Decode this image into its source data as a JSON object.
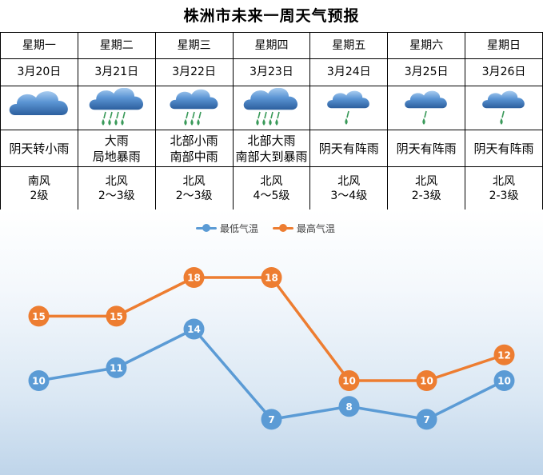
{
  "title": "株洲市未来一周天气预报",
  "days": [
    {
      "day": "星期一",
      "date": "3月20日",
      "icon": "cloudy-icon",
      "desc": [
        "阴天转小雨"
      ],
      "wind": [
        "南风",
        "2级"
      ]
    },
    {
      "day": "星期二",
      "date": "3月21日",
      "icon": "heavy-rain-icon",
      "desc": [
        "大雨",
        "局地暴雨"
      ],
      "wind": [
        "北风",
        "2～3级"
      ]
    },
    {
      "day": "星期三",
      "date": "3月22日",
      "icon": "moderate-rain-icon",
      "desc": [
        "北部小雨",
        "南部中雨"
      ],
      "wind": [
        "北风",
        "2～3级"
      ]
    },
    {
      "day": "星期四",
      "date": "3月23日",
      "icon": "heavy-rain-icon",
      "desc": [
        "北部大雨",
        "南部大到暴雨"
      ],
      "wind": [
        "北风",
        "4～5级"
      ]
    },
    {
      "day": "星期五",
      "date": "3月24日",
      "icon": "shower-icon",
      "desc": [
        "阴天有阵雨"
      ],
      "wind": [
        "北风",
        "3～4级"
      ]
    },
    {
      "day": "星期六",
      "date": "3月25日",
      "icon": "shower-icon",
      "desc": [
        "阴天有阵雨"
      ],
      "wind": [
        "北风",
        "2-3级"
      ]
    },
    {
      "day": "星期日",
      "date": "3月26日",
      "icon": "shower-icon",
      "desc": [
        "阴天有阵雨"
      ],
      "wind": [
        "北风",
        "2-3级"
      ]
    }
  ],
  "colors": {
    "low": "#5b9bd5",
    "high": "#ed7d31",
    "cloud": "#3a78c2",
    "rain": "#3a9a5a"
  },
  "chart_data": {
    "type": "line",
    "categories": [
      "星期一",
      "星期二",
      "星期三",
      "星期四",
      "星期五",
      "星期六",
      "星期日"
    ],
    "series": [
      {
        "name": "最低气温",
        "values": [
          10,
          11,
          14,
          7,
          8,
          7,
          10
        ]
      },
      {
        "name": "最高气温",
        "values": [
          15,
          15,
          18,
          18,
          10,
          10,
          12
        ]
      }
    ],
    "legend": "top-center",
    "grid": false,
    "ylim": [
      5,
      20
    ]
  }
}
